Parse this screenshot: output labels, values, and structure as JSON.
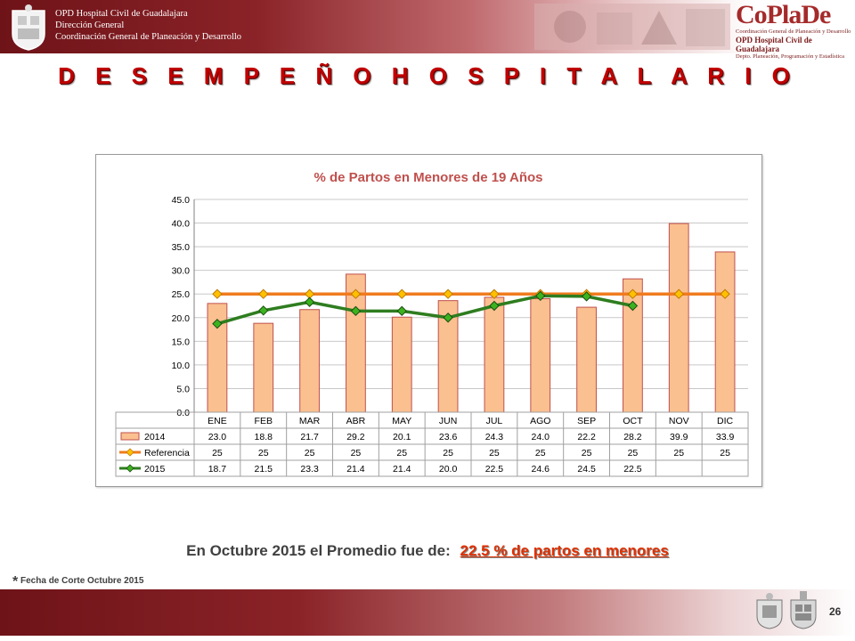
{
  "header": {
    "lines": [
      "OPD Hospital Civil de Guadalajara",
      "Dirección General",
      "Coordinación General de Planeación y Desarrollo"
    ],
    "brand": "CoPlaDe",
    "brand_lines": [
      "Coordinación General de Planeación y Desarrollo",
      "OPD Hospital Civil de Guadalajara",
      "Depto. Planeación, Programación y Estadística"
    ]
  },
  "page_title": "D E S E M P E Ñ O   H O S P I T A L A R I O",
  "chart_data": {
    "type": "bar",
    "title": "% de Partos en Menores de 19 Años",
    "categories": [
      "ENE",
      "FEB",
      "MAR",
      "ABR",
      "MAY",
      "JUN",
      "JUL",
      "AGO",
      "SEP",
      "OCT",
      "NOV",
      "DIC"
    ],
    "ylim": [
      0,
      45
    ],
    "yticks": [
      "0.0",
      "5.0",
      "10.0",
      "15.0",
      "20.0",
      "25.0",
      "30.0",
      "35.0",
      "40.0",
      "45.0"
    ],
    "grid": true,
    "legend": "data-table",
    "series": [
      {
        "name": "2014",
        "type": "bar",
        "color": "#fac090",
        "border": "#c0504d",
        "values": [
          23.0,
          18.8,
          21.7,
          29.2,
          20.1,
          23.6,
          24.3,
          24.0,
          22.2,
          28.2,
          39.9,
          33.9
        ],
        "labels": [
          "23.0",
          "18.8",
          "21.7",
          "29.2",
          "20.1",
          "23.6",
          "24.3",
          "24.0",
          "22.2",
          "28.2",
          "39.9",
          "33.9"
        ]
      },
      {
        "name": "Referencia",
        "type": "line",
        "color": "#f07b1e",
        "marker": "#ffc000",
        "values": [
          25,
          25,
          25,
          25,
          25,
          25,
          25,
          25,
          25,
          25,
          25,
          25
        ],
        "labels": [
          "25",
          "25",
          "25",
          "25",
          "25",
          "25",
          "25",
          "25",
          "25",
          "25",
          "25",
          "25"
        ]
      },
      {
        "name": "2015",
        "type": "line",
        "color": "#2e7d1f",
        "marker": "#3cb31e",
        "values": [
          18.7,
          21.5,
          23.3,
          21.4,
          21.4,
          20.0,
          22.5,
          24.6,
          24.5,
          22.5,
          null,
          null
        ],
        "labels": [
          "18.7",
          "21.5",
          "23.3",
          "21.4",
          "21.4",
          "20.0",
          "22.5",
          "24.6",
          "24.5",
          "22.5",
          "",
          ""
        ]
      }
    ]
  },
  "summary": {
    "prefix": "En Octubre 2015 el Promedio fue de:",
    "highlight": "22.5 %  de partos en menores"
  },
  "footnote": {
    "asterisk": "*",
    "text": "Fecha de Corte Octubre 2015"
  },
  "page_number": "26"
}
